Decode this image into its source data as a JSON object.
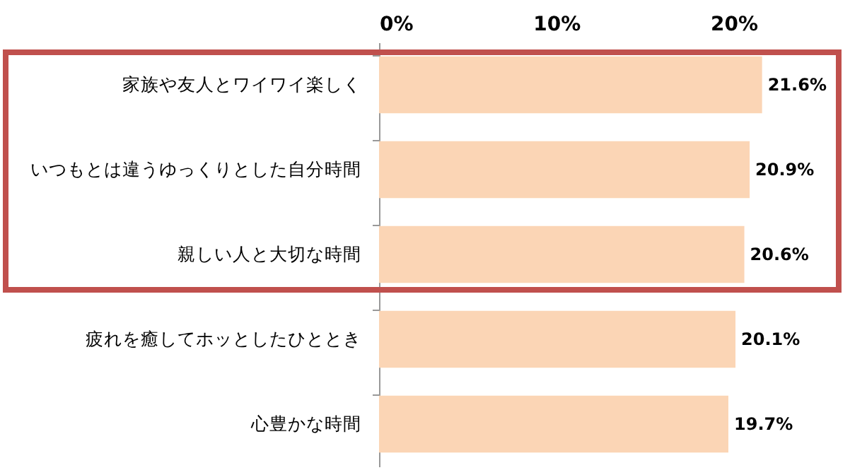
{
  "chart_data": {
    "type": "bar",
    "orientation": "horizontal",
    "categories": [
      "家族や友人とワイワイ楽しく",
      "いつもとは違うゆっくりとした自分時間",
      "親しい人と大切な時間",
      "疲れを癒してホッとしたひととき",
      "心豊かな時間"
    ],
    "values": [
      21.6,
      20.9,
      20.6,
      20.1,
      19.7
    ],
    "value_labels": [
      "21.6%",
      "20.9%",
      "20.6%",
      "20.1%",
      "19.7%"
    ],
    "color": "#fbd5b5",
    "xlim": [
      0,
      26
    ],
    "xticks": [
      {
        "value": 0,
        "label": "0%"
      },
      {
        "value": 10,
        "label": "10%"
      },
      {
        "value": 20,
        "label": "20%"
      }
    ],
    "grid": false
  }
}
